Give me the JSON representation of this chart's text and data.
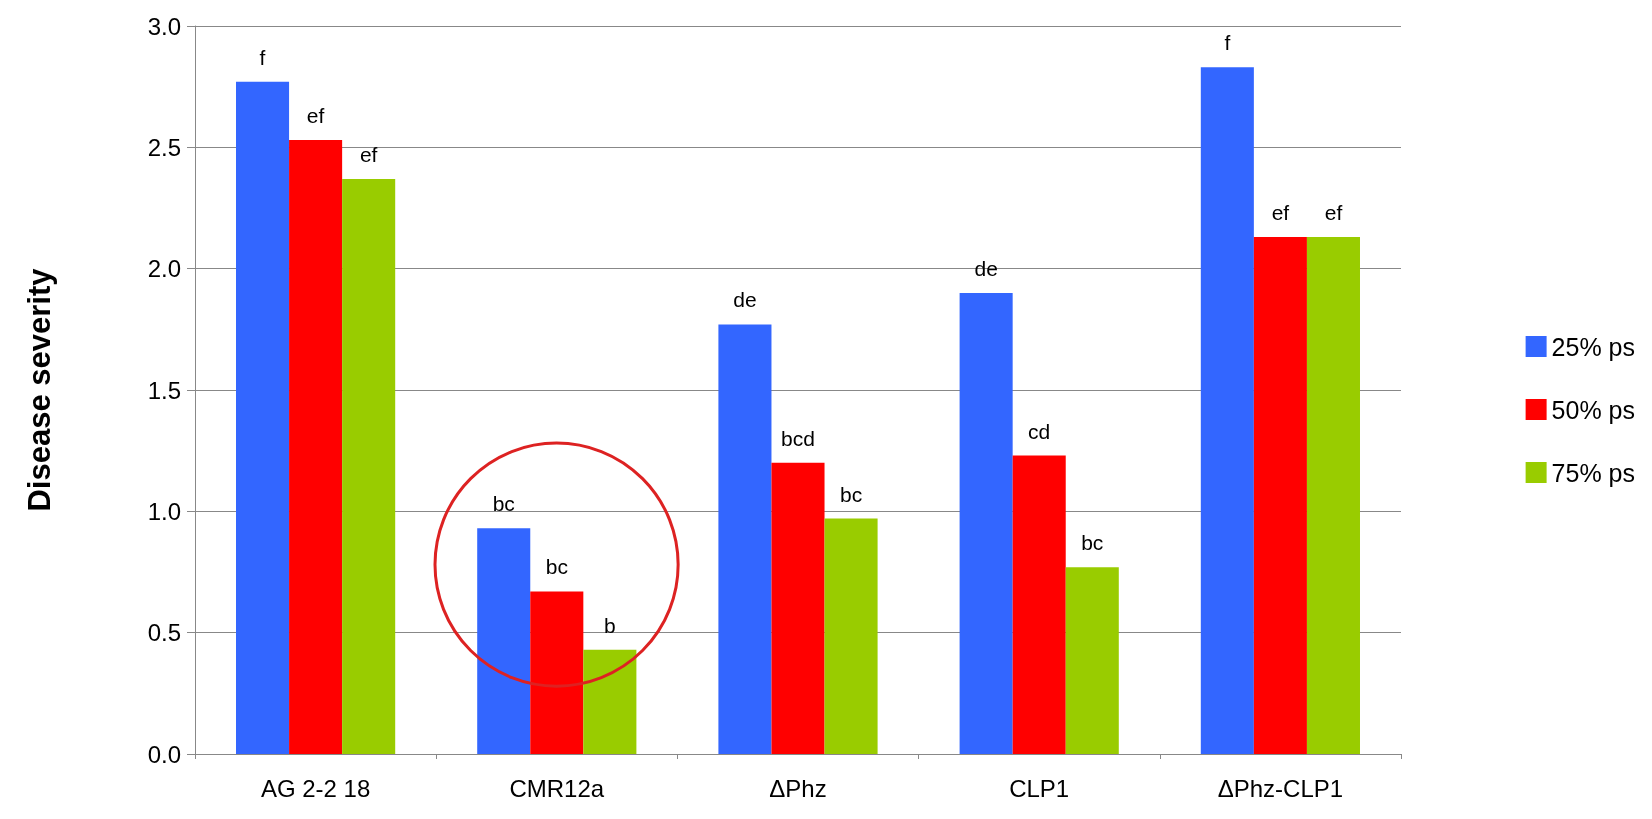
{
  "chart_data": {
    "type": "bar",
    "ylabel": "Disease severity",
    "categories": [
      "AG 2-2 18",
      "CMR12a",
      "ΔPhz",
      "CLP1",
      "ΔPhz-CLP1"
    ],
    "series": [
      {
        "name": "25% ps",
        "color": "#3366ff",
        "values": [
          2.77,
          0.93,
          1.77,
          1.9,
          2.83
        ],
        "value_labels": [
          "f",
          "bc",
          "de",
          "de",
          "f"
        ]
      },
      {
        "name": "50% ps",
        "color": "#ff0000",
        "values": [
          2.53,
          0.67,
          1.2,
          1.23,
          2.13
        ],
        "value_labels": [
          "ef",
          "bc",
          "bcd",
          "cd",
          "ef"
        ]
      },
      {
        "name": "75% ps",
        "color": "#99cc00",
        "values": [
          2.37,
          0.43,
          0.97,
          0.77,
          2.13
        ],
        "value_labels": [
          "ef",
          "b",
          "bc",
          "bc",
          "ef"
        ]
      }
    ],
    "ylim": [
      0,
      3
    ],
    "yticks": [
      {
        "value": 0,
        "label": "0.0"
      },
      {
        "value": 0.5,
        "label": "0.5"
      },
      {
        "value": 1,
        "label": "1.0"
      },
      {
        "value": 1.5,
        "label": "1.5"
      },
      {
        "value": 2,
        "label": "2.0"
      },
      {
        "value": 2.5,
        "label": "2.5"
      },
      {
        "value": 3,
        "label": "3.0"
      }
    ],
    "grid": "y",
    "legend": "right"
  }
}
